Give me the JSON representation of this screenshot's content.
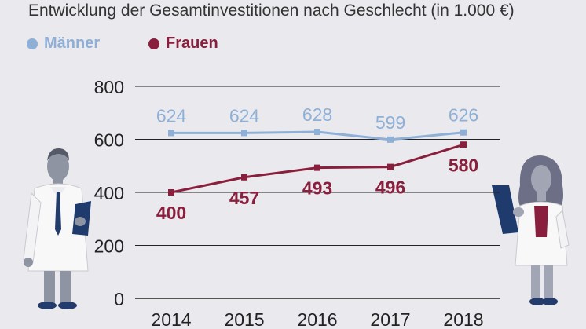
{
  "chart_data": {
    "type": "line",
    "title": "Entwicklung der Gesamtinvestitionen nach Geschlecht (in 1.000 €)",
    "categories": [
      "2014",
      "2015",
      "2016",
      "2017",
      "2018"
    ],
    "series": [
      {
        "name": "Männer",
        "values": [
          624,
          624,
          628,
          599,
          626
        ],
        "color": "#8fb0d6"
      },
      {
        "name": "Frauen",
        "values": [
          400,
          457,
          493,
          496,
          580
        ],
        "color": "#8a1f3d"
      }
    ],
    "yticks": [
      0,
      200,
      400,
      600,
      800
    ],
    "ylim": [
      0,
      800
    ],
    "grid": true,
    "legend": "top-left"
  }
}
